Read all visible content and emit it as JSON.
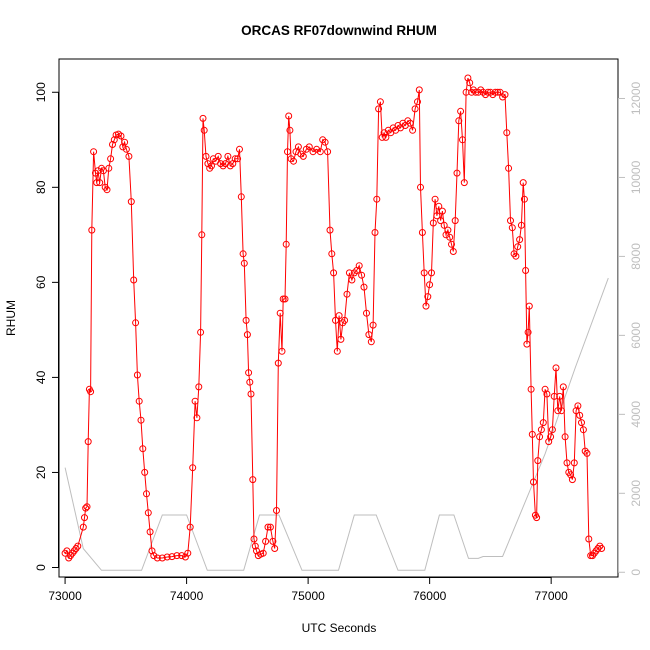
{
  "chart_data": {
    "type": "line",
    "title": "ORCAS RF07downwind RHUM",
    "xlabel": "UTC Seconds",
    "ylabel": "RHUM",
    "xlim": [
      72950,
      77550
    ],
    "ylim": [
      -2,
      107
    ],
    "y2lim": [
      -120,
      13000
    ],
    "x_ticks": [
      73000,
      74000,
      75000,
      76000,
      77000
    ],
    "y_ticks": [
      0,
      20,
      40,
      60,
      80,
      100
    ],
    "y2_ticks": [
      0,
      2000,
      4000,
      6000,
      8000,
      10000,
      12000
    ],
    "colors": {
      "rhum": "#ff0000",
      "altitude": "#bebebe"
    },
    "series": [
      {
        "values": [
          [
            73000,
            3
          ],
          [
            73015,
            3.5
          ],
          [
            73030,
            2
          ],
          [
            73045,
            2.5
          ],
          [
            73060,
            3
          ],
          [
            73075,
            3.5
          ],
          [
            73090,
            4
          ],
          [
            73105,
            4.5
          ],
          [
            73150,
            8.5
          ],
          [
            73160,
            10.5
          ],
          [
            73170,
            12.5
          ],
          [
            73180,
            12.8
          ],
          [
            73190,
            26.5
          ],
          [
            73200,
            37.5
          ],
          [
            73210,
            37
          ],
          [
            73220,
            71
          ],
          [
            73235,
            87.5
          ],
          [
            73250,
            83
          ],
          [
            73260,
            81
          ],
          [
            73270,
            83.5
          ],
          [
            73285,
            81
          ],
          [
            73300,
            84
          ],
          [
            73315,
            83.5
          ],
          [
            73330,
            80
          ],
          [
            73345,
            79.5
          ],
          [
            73360,
            84
          ],
          [
            73375,
            86
          ],
          [
            73390,
            89
          ],
          [
            73405,
            90
          ],
          [
            73420,
            91
          ],
          [
            73440,
            91.2
          ],
          [
            73460,
            90.8
          ],
          [
            73475,
            88.5
          ],
          [
            73490,
            89.5
          ],
          [
            73505,
            88
          ],
          [
            73525,
            86.5
          ],
          [
            73545,
            77
          ],
          [
            73565,
            60.5
          ],
          [
            73580,
            51.5
          ],
          [
            73595,
            40.5
          ],
          [
            73610,
            35
          ],
          [
            73625,
            31
          ],
          [
            73640,
            25
          ],
          [
            73655,
            20
          ],
          [
            73670,
            15.5
          ],
          [
            73685,
            11.5
          ],
          [
            73700,
            7.5
          ],
          [
            73715,
            3.5
          ],
          [
            73730,
            2.5
          ],
          [
            73760,
            2
          ],
          [
            73800,
            2
          ],
          [
            73840,
            2.2
          ],
          [
            73880,
            2.3
          ],
          [
            73920,
            2.5
          ],
          [
            73960,
            2.5
          ],
          [
            73990,
            2.2
          ],
          [
            74010,
            3
          ],
          [
            74030,
            8.5
          ],
          [
            74050,
            21
          ],
          [
            74070,
            35
          ],
          [
            74085,
            31.5
          ],
          [
            74100,
            38
          ],
          [
            74115,
            49.5
          ],
          [
            74125,
            70
          ],
          [
            74135,
            94.5
          ],
          [
            74145,
            92
          ],
          [
            74160,
            86.5
          ],
          [
            74175,
            85
          ],
          [
            74190,
            84
          ],
          [
            74205,
            84.5
          ],
          [
            74220,
            86
          ],
          [
            74240,
            85.5
          ],
          [
            74260,
            86.5
          ],
          [
            74280,
            85
          ],
          [
            74300,
            84.5
          ],
          [
            74320,
            85
          ],
          [
            74340,
            86.5
          ],
          [
            74360,
            84.5
          ],
          [
            74380,
            85
          ],
          [
            74400,
            86
          ],
          [
            74420,
            86
          ],
          [
            74435,
            88
          ],
          [
            74450,
            78
          ],
          [
            74465,
            66
          ],
          [
            74475,
            64
          ],
          [
            74490,
            52
          ],
          [
            74500,
            49
          ],
          [
            74510,
            41
          ],
          [
            74520,
            39
          ],
          [
            74530,
            36.5
          ],
          [
            74545,
            18.5
          ],
          [
            74555,
            6
          ],
          [
            74565,
            4.5
          ],
          [
            74575,
            3.5
          ],
          [
            74590,
            2.5
          ],
          [
            74610,
            2.8
          ],
          [
            74630,
            3
          ],
          [
            74650,
            5.5
          ],
          [
            74670,
            8.5
          ],
          [
            74690,
            8.5
          ],
          [
            74710,
            5.5
          ],
          [
            74725,
            4
          ],
          [
            74740,
            12
          ],
          [
            74755,
            43
          ],
          [
            74770,
            53.5
          ],
          [
            74785,
            45.5
          ],
          [
            74795,
            56.5
          ],
          [
            74810,
            56.5
          ],
          [
            74820,
            68
          ],
          [
            74830,
            87.5
          ],
          [
            74840,
            95
          ],
          [
            74850,
            92
          ],
          [
            74860,
            86
          ],
          [
            74880,
            85.5
          ],
          [
            74900,
            87.5
          ],
          [
            74920,
            88.5
          ],
          [
            74940,
            87
          ],
          [
            74960,
            86.5
          ],
          [
            74985,
            88
          ],
          [
            75010,
            88.5
          ],
          [
            75040,
            87.5
          ],
          [
            75070,
            88
          ],
          [
            75100,
            87.5
          ],
          [
            75120,
            90
          ],
          [
            75140,
            89.5
          ],
          [
            75160,
            87.5
          ],
          [
            75180,
            71
          ],
          [
            75195,
            66
          ],
          [
            75210,
            62
          ],
          [
            75225,
            52
          ],
          [
            75240,
            45.5
          ],
          [
            75255,
            53
          ],
          [
            75270,
            48
          ],
          [
            75285,
            51.5
          ],
          [
            75300,
            52
          ],
          [
            75320,
            57.5
          ],
          [
            75340,
            62
          ],
          [
            75360,
            60.5
          ],
          [
            75380,
            62
          ],
          [
            75400,
            62.5
          ],
          [
            75420,
            63.5
          ],
          [
            75440,
            61.5
          ],
          [
            75460,
            59
          ],
          [
            75480,
            53.5
          ],
          [
            75500,
            49
          ],
          [
            75520,
            47.5
          ],
          [
            75535,
            51
          ],
          [
            75550,
            70.5
          ],
          [
            75565,
            77.5
          ],
          [
            75580,
            96.5
          ],
          [
            75595,
            98
          ],
          [
            75610,
            90.5
          ],
          [
            75625,
            91.5
          ],
          [
            75640,
            90.5
          ],
          [
            75660,
            92
          ],
          [
            75680,
            91.5
          ],
          [
            75700,
            92.5
          ],
          [
            75720,
            92
          ],
          [
            75740,
            93
          ],
          [
            75760,
            92.5
          ],
          [
            75780,
            93.5
          ],
          [
            75800,
            93
          ],
          [
            75820,
            94
          ],
          [
            75840,
            93.5
          ],
          [
            75860,
            92
          ],
          [
            75880,
            96.5
          ],
          [
            75900,
            98
          ],
          [
            75915,
            100.5
          ],
          [
            75925,
            80
          ],
          [
            75940,
            70.5
          ],
          [
            75955,
            62
          ],
          [
            75970,
            55
          ],
          [
            75985,
            57
          ],
          [
            76000,
            59.5
          ],
          [
            76015,
            62
          ],
          [
            76030,
            72.5
          ],
          [
            76045,
            77.5
          ],
          [
            76060,
            74
          ],
          [
            76075,
            76
          ],
          [
            76090,
            73
          ],
          [
            76105,
            75
          ],
          [
            76120,
            72
          ],
          [
            76135,
            70
          ],
          [
            76150,
            71
          ],
          [
            76165,
            69.5
          ],
          [
            76180,
            68
          ],
          [
            76195,
            66.5
          ],
          [
            76210,
            73
          ],
          [
            76225,
            83
          ],
          [
            76240,
            94
          ],
          [
            76255,
            96
          ],
          [
            76270,
            90
          ],
          [
            76285,
            81
          ],
          [
            76300,
            100
          ],
          [
            76315,
            103
          ],
          [
            76330,
            102
          ],
          [
            76345,
            100
          ],
          [
            76360,
            100.5
          ],
          [
            76380,
            100
          ],
          [
            76400,
            100
          ],
          [
            76420,
            100.5
          ],
          [
            76440,
            100
          ],
          [
            76460,
            99.5
          ],
          [
            76480,
            100
          ],
          [
            76500,
            100
          ],
          [
            76520,
            99.5
          ],
          [
            76540,
            100
          ],
          [
            76560,
            100
          ],
          [
            76580,
            100
          ],
          [
            76600,
            99
          ],
          [
            76620,
            99.5
          ],
          [
            76635,
            91.5
          ],
          [
            76650,
            84
          ],
          [
            76665,
            73
          ],
          [
            76680,
            71.5
          ],
          [
            76695,
            66
          ],
          [
            76710,
            65.5
          ],
          [
            76725,
            67.5
          ],
          [
            76740,
            69
          ],
          [
            76755,
            72
          ],
          [
            76770,
            81
          ],
          [
            76780,
            77.5
          ],
          [
            76790,
            62.5
          ],
          [
            76800,
            47
          ],
          [
            76810,
            49.5
          ],
          [
            76820,
            55
          ],
          [
            76835,
            37.5
          ],
          [
            76845,
            28
          ],
          [
            76855,
            18
          ],
          [
            76870,
            11
          ],
          [
            76880,
            10.5
          ],
          [
            76890,
            22.5
          ],
          [
            76905,
            27.5
          ],
          [
            76920,
            29
          ],
          [
            76935,
            30.5
          ],
          [
            76950,
            37.5
          ],
          [
            76965,
            36.5
          ],
          [
            76980,
            26.5
          ],
          [
            76995,
            27.5
          ],
          [
            77010,
            29
          ],
          [
            77025,
            36
          ],
          [
            77040,
            42
          ],
          [
            77055,
            33
          ],
          [
            77070,
            36
          ],
          [
            77085,
            33
          ],
          [
            77100,
            38
          ],
          [
            77115,
            27.5
          ],
          [
            77130,
            22
          ],
          [
            77145,
            20
          ],
          [
            77160,
            19.5
          ],
          [
            77175,
            18.5
          ],
          [
            77190,
            22
          ],
          [
            77205,
            33
          ],
          [
            77220,
            34
          ],
          [
            77235,
            32
          ],
          [
            77250,
            30.5
          ],
          [
            77265,
            29
          ],
          [
            77280,
            24.5
          ],
          [
            77295,
            24
          ],
          [
            77310,
            6
          ],
          [
            77325,
            2.5
          ],
          [
            77340,
            2.5
          ],
          [
            77355,
            3
          ],
          [
            77370,
            3.5
          ],
          [
            77385,
            4
          ],
          [
            77400,
            4.5
          ],
          [
            77415,
            4
          ]
        ]
      },
      {
        "values": [
          [
            73000,
            2650
          ],
          [
            73150,
            600
          ],
          [
            73300,
            50
          ],
          [
            73450,
            50
          ],
          [
            73630,
            50
          ],
          [
            73800,
            1450
          ],
          [
            74000,
            1450
          ],
          [
            74170,
            50
          ],
          [
            74330,
            50
          ],
          [
            74470,
            50
          ],
          [
            74600,
            1450
          ],
          [
            74760,
            1450
          ],
          [
            74950,
            50
          ],
          [
            75100,
            50
          ],
          [
            75250,
            50
          ],
          [
            75380,
            1450
          ],
          [
            75560,
            1450
          ],
          [
            75740,
            50
          ],
          [
            75840,
            50
          ],
          [
            75960,
            50
          ],
          [
            76080,
            1450
          ],
          [
            76200,
            1450
          ],
          [
            76320,
            350
          ],
          [
            76400,
            350
          ],
          [
            76440,
            400
          ],
          [
            76600,
            400
          ],
          [
            76950,
            3000
          ],
          [
            77200,
            5200
          ],
          [
            77470,
            7450
          ]
        ]
      }
    ]
  }
}
